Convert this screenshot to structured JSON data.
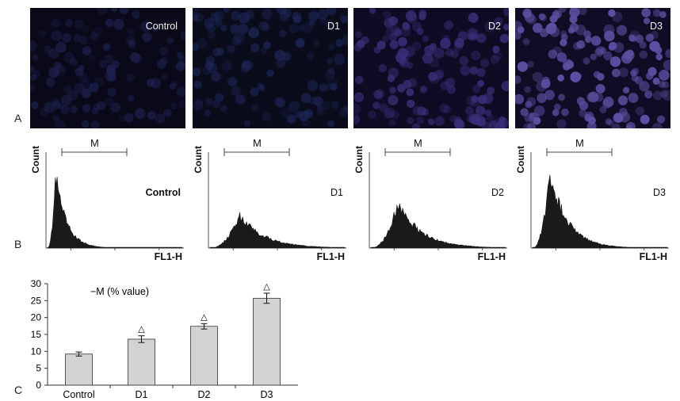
{
  "panels": {
    "a": "A",
    "b": "B",
    "c": "C"
  },
  "micrographs": [
    {
      "label": "Control",
      "bg": "#09091a",
      "cell": "#1f2350",
      "density": 0.35
    },
    {
      "label": "D1",
      "bg": "#0a0c1c",
      "cell": "#1d2656",
      "density": 0.4
    },
    {
      "label": "D2",
      "bg": "#0f0b24",
      "cell": "#3a2f7a",
      "density": 0.55
    },
    {
      "label": "D3",
      "bg": "#100c26",
      "cell": "#5a4fa0",
      "density": 0.7
    }
  ],
  "histograms": [
    {
      "label": "Control",
      "count_label": "Count",
      "marker_label": "M",
      "x_label": "FL1-H",
      "peak_pos": 0.06,
      "peak_height": 0.88,
      "spread": 0.08
    },
    {
      "label": "D1",
      "count_label": "Count",
      "marker_label": "M",
      "x_label": "FL1-H",
      "peak_pos": 0.22,
      "peak_height": 0.4,
      "spread": 0.18
    },
    {
      "label": "D2",
      "count_label": "Count",
      "marker_label": "M",
      "x_label": "FL1-H",
      "peak_pos": 0.2,
      "peak_height": 0.55,
      "spread": 0.17
    },
    {
      "label": "D3",
      "count_label": "Count",
      "marker_label": "M",
      "x_label": "FL1-H",
      "peak_pos": 0.13,
      "peak_height": 0.9,
      "spread": 0.13
    }
  ],
  "chart_data": {
    "type": "bar",
    "legend": "−M (% value)",
    "categories": [
      "Control",
      "D1",
      "D2",
      "D3"
    ],
    "values": [
      9.2,
      13.6,
      17.4,
      25.7
    ],
    "errors": [
      0.6,
      1.0,
      0.8,
      1.5
    ],
    "significance": [
      "",
      "△",
      "△",
      "△"
    ],
    "ylim": [
      0,
      30
    ],
    "yticks": [
      0,
      5,
      10,
      15,
      20,
      25,
      30
    ],
    "bar_color": "#d3d3d3"
  }
}
